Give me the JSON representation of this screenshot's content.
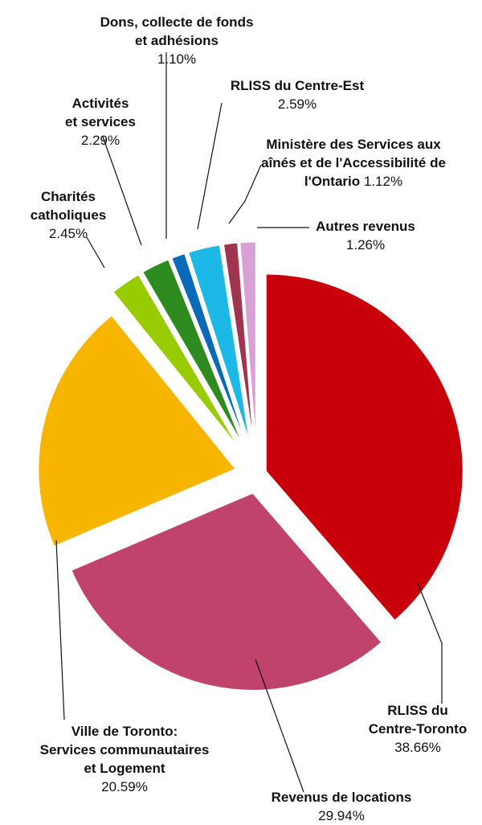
{
  "chart_data": {
    "type": "pie",
    "exploded": true,
    "slices": [
      {
        "name": "RLISS du Centre-Toronto",
        "value": 38.66,
        "pct": "38.66%",
        "color": "#c8000a"
      },
      {
        "name": "Revenus de locations",
        "value": 29.94,
        "pct": "29.94%",
        "color": "#c0436b"
      },
      {
        "name": "Ville de Toronto: Services communautaires et Logement",
        "value": 20.59,
        "pct": "20.59%",
        "color": "#f7b500"
      },
      {
        "name": "Charités catholiques",
        "value": 2.45,
        "pct": "2.45%",
        "color": "#99cc00"
      },
      {
        "name": "Activités et services",
        "value": 2.29,
        "pct": "2.29%",
        "color": "#2e8b1f"
      },
      {
        "name": "Dons, collecte de fonds et adhésions",
        "value": 1.1,
        "pct": "1.10%",
        "color": "#0b6ab8"
      },
      {
        "name": "RLISS du Centre-Est",
        "value": 2.59,
        "pct": "2.59%",
        "color": "#1cb9e6"
      },
      {
        "name": "Ministère des Services aux aînés et de l'Accessibilité de l'Ontario",
        "value": 1.12,
        "pct": "1.12%",
        "color": "#a0344f"
      },
      {
        "name": "Autres revenus",
        "value": 1.26,
        "pct": "1.26%",
        "color": "#d8a0d4"
      }
    ]
  },
  "labels": {
    "s0": {
      "l1": "RLISS du",
      "l2": "Centre-Toronto",
      "pct": "38.66%"
    },
    "s1": {
      "l1": "Revenus de locations",
      "pct": "29.94%"
    },
    "s2": {
      "l1": "Ville de Toronto:",
      "l2": "Services communautaires",
      "l3": "et Logement",
      "pct": "20.59%"
    },
    "s3": {
      "l1": "Charités",
      "l2": "catholiques",
      "pct": "2.45%"
    },
    "s4": {
      "l1": "Activités",
      "l2": "et services",
      "pct": "2.29%"
    },
    "s5": {
      "l1": "Dons, collecte de fonds",
      "l2": "et adhésions",
      "pct": "1.10%"
    },
    "s6": {
      "l1": "RLISS du Centre-Est",
      "pct": "2.59%"
    },
    "s7": {
      "l1": "Ministère des Services aux",
      "l2": "aînés et de l'Accessibilité de",
      "l3": "l'Ontario",
      "pct": "1.12%"
    },
    "s8": {
      "l1": "Autres revenus",
      "pct": "1.26%"
    }
  }
}
